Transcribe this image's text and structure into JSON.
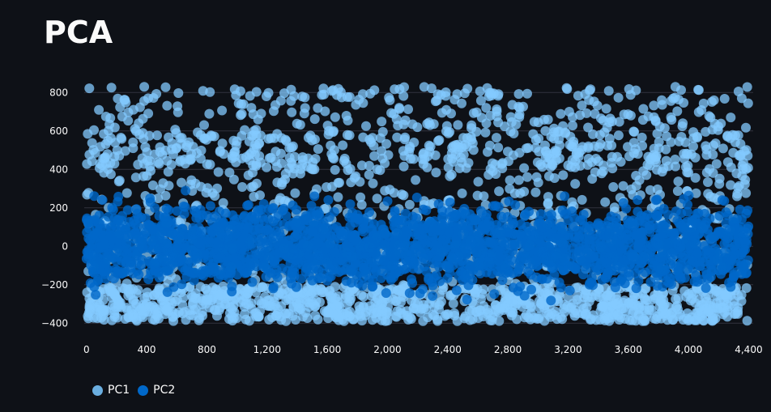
{
  "chart_data": {
    "type": "scatter",
    "title": "PCA",
    "xlabel": "",
    "ylabel": "",
    "xlim": [
      -15,
      4430
    ],
    "ylim": [
      -420,
      860
    ],
    "x_ticks": [
      0,
      400,
      800,
      1200,
      1600,
      2000,
      2400,
      2800,
      3200,
      3600,
      4000,
      4400
    ],
    "x_tick_labels": [
      "0",
      "400",
      "800",
      "1,200",
      "1,600",
      "2,000",
      "2,400",
      "2,800",
      "3,200",
      "3,600",
      "4,000",
      "4,400"
    ],
    "y_ticks": [
      -400,
      -200,
      0,
      200,
      400,
      600,
      800
    ],
    "y_tick_labels": [
      "−400",
      "−200",
      "0",
      "200",
      "400",
      "600",
      "800"
    ],
    "grid": "horizontal",
    "legend": "bottom-left",
    "n_points_per_series": 4400,
    "series": [
      {
        "name": "PC1",
        "color": "#83c9ff",
        "y_range": [
          -390,
          830
        ],
        "marker": "circle"
      },
      {
        "name": "PC2",
        "color": "#0068c9",
        "y_range": [
          -400,
          350
        ],
        "marker": "circle"
      }
    ]
  },
  "legend_colors": {
    "PC1": "#6aaee0",
    "PC2": "#0068c9"
  }
}
